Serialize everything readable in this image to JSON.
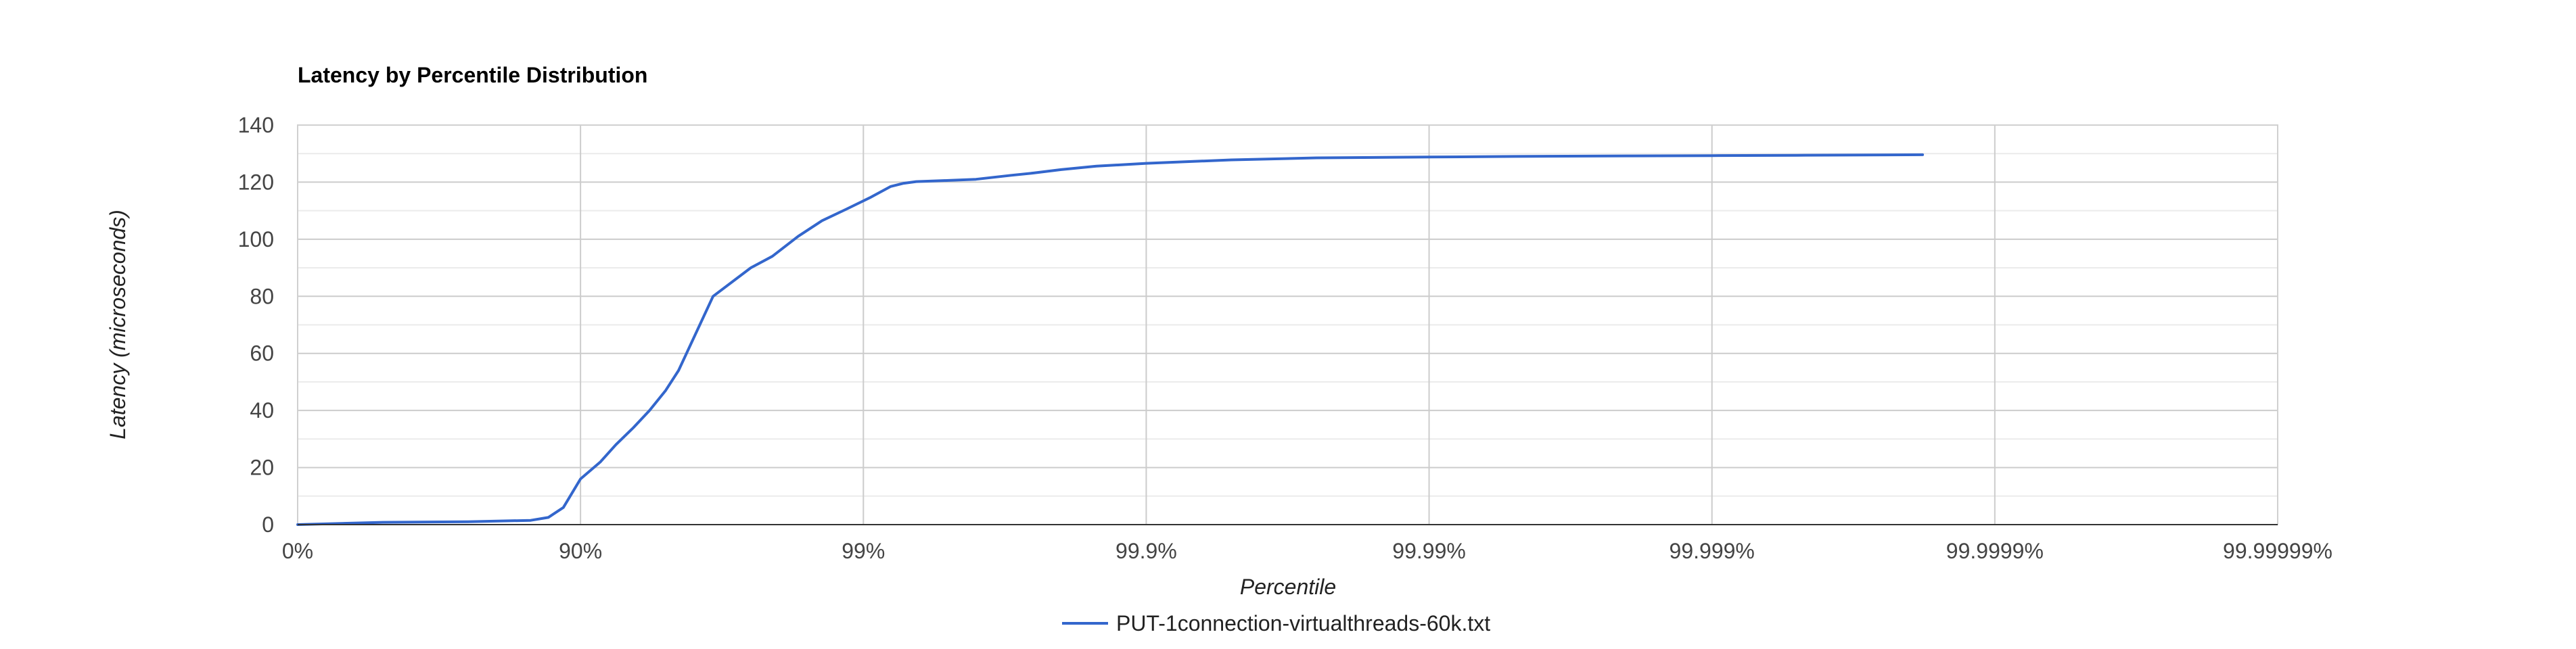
{
  "chart_data": {
    "type": "line",
    "title": "Latency by Percentile Distribution",
    "xlabel": "Percentile",
    "ylabel": "Latency (microseconds)",
    "x_scale": "log-percentile",
    "x_ticks": [
      {
        "value": 0,
        "label": "0%"
      },
      {
        "value": 90,
        "label": "90%"
      },
      {
        "value": 99,
        "label": "99%"
      },
      {
        "value": 99.9,
        "label": "99.9%"
      },
      {
        "value": 99.99,
        "label": "99.99%"
      },
      {
        "value": 99.999,
        "label": "99.999%"
      },
      {
        "value": 99.9999,
        "label": "99.9999%"
      },
      {
        "value": 99.99999,
        "label": "99.99999%"
      }
    ],
    "y_ticks": [
      0,
      20,
      40,
      60,
      80,
      100,
      120,
      140
    ],
    "ylim": [
      0,
      140
    ],
    "grid": true,
    "legend_position": "bottom",
    "series": [
      {
        "name": "PUT-1connection-virtualthreads-60k.txt",
        "color": "#3366cc",
        "points": [
          [
            0,
            0.0
          ],
          [
            50,
            0.8
          ],
          [
            75,
            1.0
          ],
          [
            85,
            1.5
          ],
          [
            87,
            2.5
          ],
          [
            88.5,
            6.0
          ],
          [
            90,
            16.0
          ],
          [
            91.5,
            22.0
          ],
          [
            92.5,
            28.0
          ],
          [
            93.5,
            34.0
          ],
          [
            94.3,
            40.0
          ],
          [
            95.0,
            47.0
          ],
          [
            95.5,
            54.0
          ],
          [
            96.6,
            80.0
          ],
          [
            97.5,
            90.0
          ],
          [
            97.9,
            94.0
          ],
          [
            98.3,
            101.0
          ],
          [
            98.6,
            106.5
          ],
          [
            98.85,
            110.5
          ],
          [
            99.05,
            114.5
          ],
          [
            99.2,
            118.5
          ],
          [
            99.28,
            119.6
          ],
          [
            99.35,
            120.2
          ],
          [
            99.5,
            120.6
          ],
          [
            99.6,
            121.0
          ],
          [
            99.7,
            122.4
          ],
          [
            99.75,
            123.2
          ],
          [
            99.8,
            124.4
          ],
          [
            99.85,
            125.6
          ],
          [
            99.9,
            126.6
          ],
          [
            99.95,
            127.8
          ],
          [
            99.975,
            128.5
          ],
          [
            99.99,
            128.8
          ],
          [
            99.995,
            129.0
          ],
          [
            99.998,
            129.2
          ],
          [
            99.999,
            129.3
          ],
          [
            99.9995,
            129.4
          ],
          [
            99.99982,
            129.6
          ]
        ]
      }
    ]
  }
}
